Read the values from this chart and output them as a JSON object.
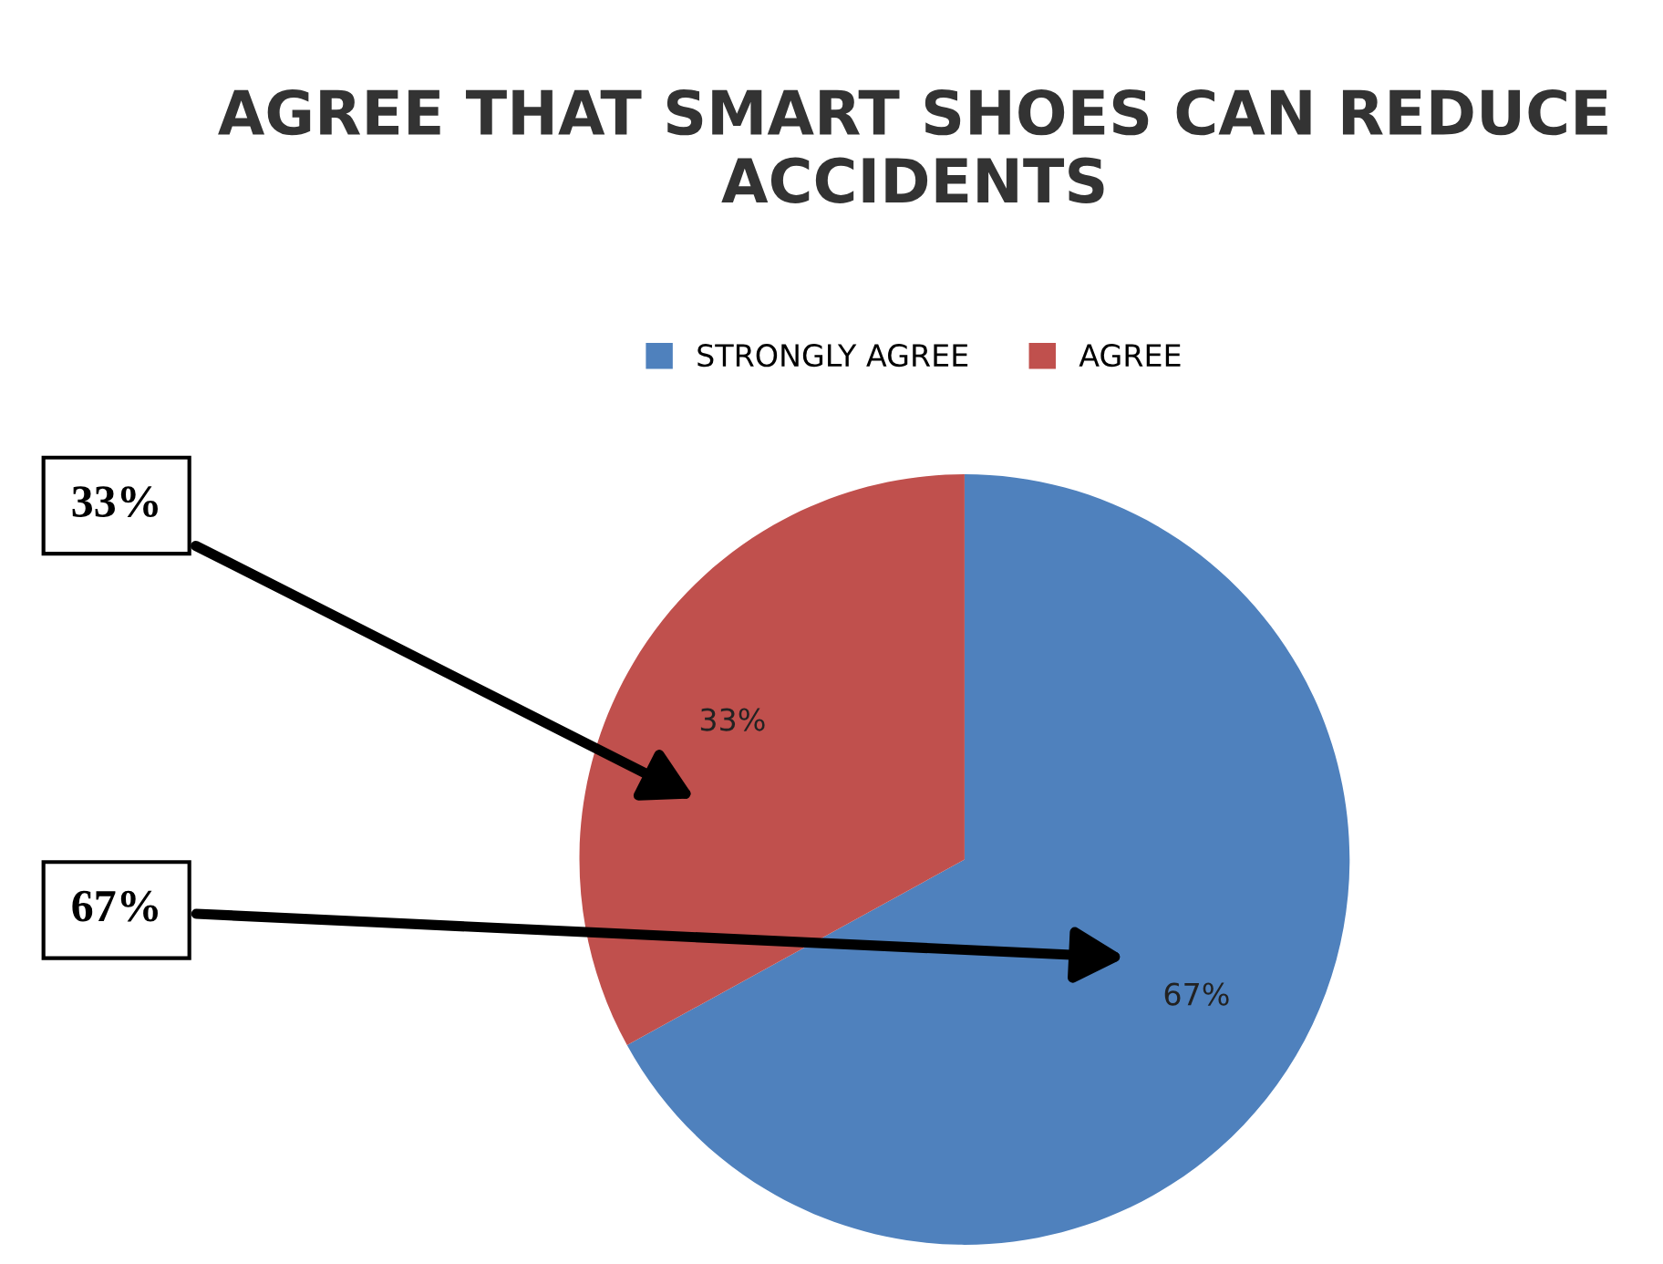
{
  "chart_data": {
    "type": "pie",
    "title": "AGREE THAT SMART SHOES CAN REDUCE ACCIDENTS",
    "categories": [
      "STRONGLY AGREE",
      "AGREE"
    ],
    "values": [
      67,
      33
    ],
    "colors": [
      "#4f81bd",
      "#c0504d"
    ],
    "value_labels": [
      "67%",
      "33%"
    ],
    "legend": "top",
    "annotations": [
      "33%",
      "67%"
    ]
  }
}
